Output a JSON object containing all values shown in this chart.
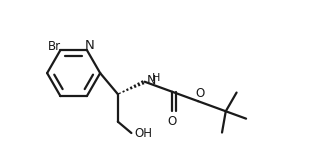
{
  "bg_color": "#ffffff",
  "line_color": "#1a1a1a",
  "bond_width": 1.6,
  "font_size": 8.5,
  "figsize": [
    3.29,
    1.56
  ],
  "dpi": 100,
  "xlim": [
    0,
    3.29
  ],
  "ylim": [
    0,
    1.56
  ]
}
